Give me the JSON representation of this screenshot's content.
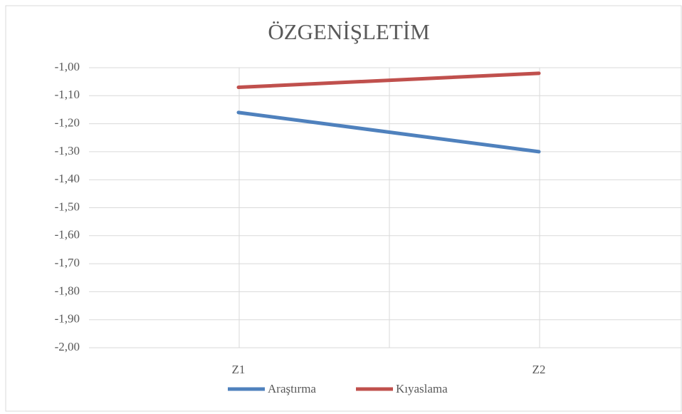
{
  "chart_data": {
    "type": "line",
    "title": "ÖZGENİŞLETİM",
    "categories": [
      "Z1",
      "Z2"
    ],
    "series": [
      {
        "name": "Araştırma",
        "color": "#4f81bd",
        "values": [
          -1.16,
          -1.3
        ]
      },
      {
        "name": "Kıyaslama",
        "color": "#c0504d",
        "values": [
          -1.07,
          -1.02
        ]
      }
    ],
    "ylim": [
      -2,
      -1
    ],
    "yticks": [
      {
        "value": -1,
        "label": "-1,00"
      },
      {
        "value": -1.1,
        "label": "-1,10"
      },
      {
        "value": -1.2,
        "label": "-1,20"
      },
      {
        "value": -1.3,
        "label": "-1,30"
      },
      {
        "value": -1.4,
        "label": "-1,40"
      },
      {
        "value": -1.5,
        "label": "-1,50"
      },
      {
        "value": -1.6,
        "label": "-1,60"
      },
      {
        "value": -1.7,
        "label": "-1,70"
      },
      {
        "value": -1.8,
        "label": "-1,80"
      },
      {
        "value": -1.9,
        "label": "-1,90"
      },
      {
        "value": -2,
        "label": "-2,00"
      }
    ],
    "grid": true,
    "legend": "bottom"
  }
}
